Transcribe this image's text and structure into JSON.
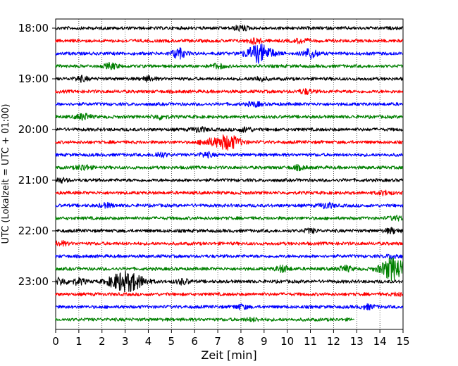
{
  "chart_data": {
    "type": "line",
    "subtype": "seismic-helicorder",
    "xlabel": "Zeit  [min]",
    "ylabel": "UTC (Lokalzeit = UTC + 01:00)",
    "xlim": [
      0,
      15
    ],
    "x_ticks": [
      "0",
      "1",
      "2",
      "3",
      "4",
      "5",
      "6",
      "7",
      "8",
      "9",
      "10",
      "11",
      "12",
      "13",
      "14",
      "15"
    ],
    "y_tick_labels": [
      "18:00",
      "19:00",
      "20:00",
      "21:00",
      "22:00",
      "23:00"
    ],
    "y_tick_line_index": [
      0,
      4,
      8,
      12,
      16,
      20
    ],
    "grid": "vertical dotted lines at each minute",
    "trace_interval_min": 15,
    "trace_colors": [
      "#000000",
      "#ff0000",
      "#0000ff",
      "#008000"
    ],
    "traces": [
      {
        "start": "18:00",
        "color": "#000000",
        "end_min": 15,
        "bursts": [
          {
            "t": 8.0,
            "amp": 1.5
          }
        ]
      },
      {
        "start": "18:15",
        "color": "#ff0000",
        "end_min": 15,
        "bursts": [
          {
            "t": 8.6,
            "amp": 1.5
          },
          {
            "t": 10.6,
            "amp": 1.2
          }
        ]
      },
      {
        "start": "18:30",
        "color": "#0000ff",
        "end_min": 15,
        "bursts": [
          {
            "t": 5.3,
            "amp": 3.0
          },
          {
            "t": 8.8,
            "amp": 5.5
          },
          {
            "t": 11.0,
            "amp": 3.0
          }
        ]
      },
      {
        "start": "18:45",
        "color": "#008000",
        "end_min": 15,
        "bursts": [
          {
            "t": 2.4,
            "amp": 1.6
          },
          {
            "t": 7.0,
            "amp": 1.2
          }
        ]
      },
      {
        "start": "19:00",
        "color": "#000000",
        "end_min": 15,
        "bursts": [
          {
            "t": 1.1,
            "amp": 1.4
          },
          {
            "t": 4.0,
            "amp": 1.2
          },
          {
            "t": 8.8,
            "amp": 1.2
          }
        ]
      },
      {
        "start": "19:15",
        "color": "#ff0000",
        "end_min": 15,
        "bursts": [
          {
            "t": 10.8,
            "amp": 1.3
          }
        ]
      },
      {
        "start": "19:30",
        "color": "#0000ff",
        "end_min": 15,
        "bursts": [
          {
            "t": 8.6,
            "amp": 1.2
          }
        ]
      },
      {
        "start": "19:45",
        "color": "#008000",
        "end_min": 15,
        "bursts": [
          {
            "t": 1.2,
            "amp": 1.8
          },
          {
            "t": 4.5,
            "amp": 1.2
          }
        ]
      },
      {
        "start": "20:00",
        "color": "#000000",
        "end_min": 15,
        "bursts": [
          {
            "t": 6.2,
            "amp": 1.4
          },
          {
            "t": 8.2,
            "amp": 1.3
          }
        ]
      },
      {
        "start": "20:15",
        "color": "#ff0000",
        "end_min": 15,
        "bursts": [
          {
            "t": 7.4,
            "amp": 4.5
          },
          {
            "t": 6.5,
            "amp": 1.5
          }
        ]
      },
      {
        "start": "20:30",
        "color": "#0000ff",
        "end_min": 15,
        "bursts": [
          {
            "t": 4.5,
            "amp": 1.4
          },
          {
            "t": 6.5,
            "amp": 1.3
          }
        ]
      },
      {
        "start": "20:45",
        "color": "#008000",
        "end_min": 15,
        "bursts": [
          {
            "t": 1.2,
            "amp": 1.6
          },
          {
            "t": 10.5,
            "amp": 1.1
          }
        ]
      },
      {
        "start": "21:00",
        "color": "#000000",
        "end_min": 15,
        "bursts": [
          {
            "t": 0.2,
            "amp": 1.2
          }
        ]
      },
      {
        "start": "21:15",
        "color": "#ff0000",
        "end_min": 15,
        "bursts": [
          {
            "t": 14.2,
            "amp": 1.1
          }
        ]
      },
      {
        "start": "21:30",
        "color": "#0000ff",
        "end_min": 15,
        "bursts": [
          {
            "t": 11.7,
            "amp": 1.6
          },
          {
            "t": 2.2,
            "amp": 1.1
          }
        ]
      },
      {
        "start": "21:45",
        "color": "#008000",
        "end_min": 15,
        "bursts": [
          {
            "t": 14.7,
            "amp": 1.1
          }
        ]
      },
      {
        "start": "22:00",
        "color": "#000000",
        "end_min": 15,
        "bursts": [
          {
            "t": 14.5,
            "amp": 1.4
          },
          {
            "t": 11.0,
            "amp": 1.1
          }
        ]
      },
      {
        "start": "22:15",
        "color": "#ff0000",
        "end_min": 15,
        "bursts": [
          {
            "t": 0.2,
            "amp": 1.2
          }
        ]
      },
      {
        "start": "22:30",
        "color": "#0000ff",
        "end_min": 15,
        "bursts": [
          {
            "t": 14.6,
            "amp": 1.2
          }
        ]
      },
      {
        "start": "22:45",
        "color": "#008000",
        "end_min": 15,
        "bursts": [
          {
            "t": 9.8,
            "amp": 1.8
          },
          {
            "t": 12.5,
            "amp": 1.6
          },
          {
            "t": 14.6,
            "amp": 7.0
          }
        ]
      },
      {
        "start": "23:00",
        "color": "#000000",
        "end_min": 15,
        "bursts": [
          {
            "t": 2.8,
            "amp": 4.5
          },
          {
            "t": 3.4,
            "amp": 3.5
          },
          {
            "t": 1.0,
            "amp": 1.8
          },
          {
            "t": 0.2,
            "amp": 2.0
          },
          {
            "t": 5.5,
            "amp": 1.5
          }
        ]
      },
      {
        "start": "23:15",
        "color": "#ff0000",
        "end_min": 15,
        "bursts": [
          {
            "t": 14.9,
            "amp": 1.1
          }
        ]
      },
      {
        "start": "23:30",
        "color": "#0000ff",
        "end_min": 15,
        "bursts": [
          {
            "t": 8.0,
            "amp": 1.2
          },
          {
            "t": 13.5,
            "amp": 1.2
          }
        ]
      },
      {
        "start": "23:45",
        "color": "#008000",
        "end_min": 12.9,
        "bursts": [
          {
            "t": 8.5,
            "amp": 0.8
          }
        ]
      }
    ]
  }
}
